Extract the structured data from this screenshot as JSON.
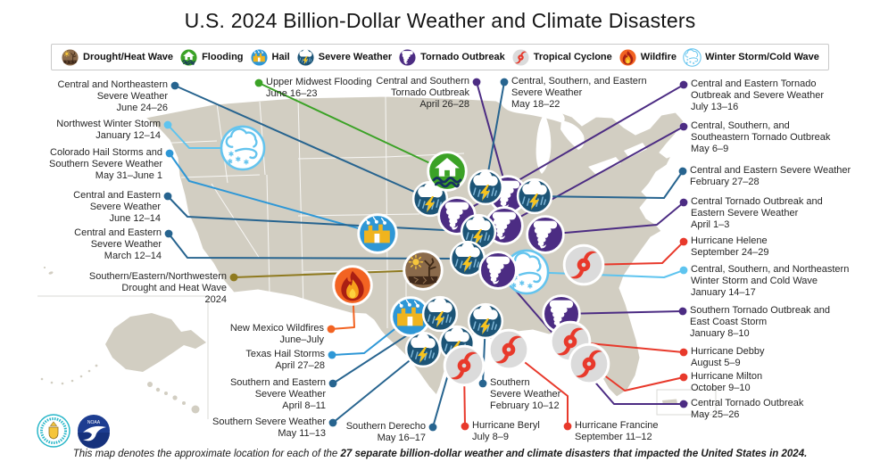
{
  "title": "U.S. 2024 Billion-Dollar Weather and Climate Disasters",
  "footer": {
    "normal": "This map denotes the approximate location for each of the ",
    "bold": "27 separate billion-dollar weather and climate disasters that impacted the United States in 2024."
  },
  "logos": {
    "noaa_text": "NOAA"
  },
  "type_colors": {
    "severe-weather": "#27648f",
    "tornado": "#4c2c83",
    "tropical-cyclone": "#e8392b",
    "winter-storm": "#5ec4ef",
    "hail": "#2e97d6",
    "flooding": "#3ba226",
    "wildfire": "#f26322",
    "drought": "#8f7a1f"
  },
  "type_icon_scale": {
    "severe-weather": 1.02,
    "tornado": 1.1,
    "tropical-cyclone": 1.18,
    "winter-storm": 1.3,
    "hail": 1.15,
    "flooding": 1.15,
    "wildfire": 1.15,
    "drought": 1.15
  },
  "legend": [
    {
      "type": "drought",
      "label": "Drought/Heat Wave"
    },
    {
      "type": "flooding",
      "label": "Flooding"
    },
    {
      "type": "hail",
      "label": "Hail"
    },
    {
      "type": "severe-weather",
      "label": "Severe Weather"
    },
    {
      "type": "tornado",
      "label": "Tornado Outbreak"
    },
    {
      "type": "tropical-cyclone",
      "label": "Tropical Cyclone"
    },
    {
      "type": "wildfire",
      "label": "Wildfire"
    },
    {
      "type": "winter-storm",
      "label": "Winter Storm/Cold Wave"
    }
  ],
  "disasters": [
    {
      "type": "severe-weather",
      "label": [
        "Central and Northeastern",
        "Severe Weather",
        "June 24–26"
      ],
      "dot": [
        196,
        96
      ],
      "icon": [
        482,
        223
      ],
      "elbows": [],
      "align": "right"
    },
    {
      "type": "flooding",
      "label": [
        "Upper Midwest Flooding",
        "June 16–23"
      ],
      "dot": [
        290,
        93
      ],
      "icon": [
        501,
        192
      ],
      "elbows": [],
      "align": "left"
    },
    {
      "type": "tornado",
      "label": [
        "Central and Southern",
        "Tornado Outbreak",
        "April 26–28"
      ],
      "dot": [
        534,
        92
      ],
      "icon": [
        569,
        218
      ],
      "elbows": [],
      "align": "right"
    },
    {
      "type": "severe-weather",
      "label": [
        "Central, Southern, and Eastern",
        "Severe Weather",
        "May 18–22"
      ],
      "dot": [
        565,
        92
      ],
      "icon": [
        544,
        210
      ],
      "elbows": [],
      "align": "left"
    },
    {
      "type": "tornado",
      "label": [
        "Central and Eastern Tornado",
        "Outbreak and Severe Weather",
        "July 13–16"
      ],
      "dot": [
        766,
        95
      ],
      "icon": [
        512,
        242
      ],
      "elbows": [],
      "align": "left"
    },
    {
      "type": "winter-storm",
      "label": [
        "Northwest Winter Storm",
        "January 12–14"
      ],
      "dot": [
        188,
        140
      ],
      "icon": [
        272,
        166
      ],
      "elbows": [
        [
          212,
          166
        ]
      ],
      "align": "right"
    },
    {
      "type": "hail",
      "label": [
        "Colorado Hail Storms and",
        "Southern Severe Weather",
        "May 31–June 1"
      ],
      "dot": [
        190,
        172
      ],
      "icon": [
        423,
        262
      ],
      "elbows": [
        [
          212,
          203
        ]
      ],
      "align": "right"
    },
    {
      "type": "tornado",
      "label": [
        "Central, Southern, and",
        "Southeastern Tornado Outbreak",
        "May 6–9"
      ],
      "dot": [
        766,
        142
      ],
      "icon": [
        565,
        253
      ],
      "elbows": [],
      "align": "left"
    },
    {
      "type": "severe-weather",
      "label": [
        "Central and Eastern",
        "Severe Weather",
        "June 12–14"
      ],
      "dot": [
        188,
        220
      ],
      "icon": [
        536,
        260
      ],
      "elbows": [
        [
          210,
          243
        ]
      ],
      "align": "right"
    },
    {
      "type": "severe-weather",
      "label": [
        "Central and Eastern Severe Weather",
        "February 27–28"
      ],
      "dot": [
        765,
        192
      ],
      "icon": [
        599,
        220
      ],
      "elbows": [
        [
          744,
          222
        ]
      ],
      "align": "left"
    },
    {
      "type": "severe-weather",
      "label": [
        "Central and Eastern",
        "Severe Weather",
        "March 12–14"
      ],
      "dot": [
        189,
        262
      ],
      "icon": [
        524,
        290
      ],
      "elbows": [
        [
          210,
          289
        ]
      ],
      "align": "right"
    },
    {
      "type": "tornado",
      "label": [
        "Central Tornado Outbreak and",
        "Eastern Severe Weather",
        "April 1–3"
      ],
      "dot": [
        766,
        227
      ],
      "icon": [
        611,
        263
      ],
      "elbows": [
        [
          736,
          252
        ]
      ],
      "align": "left"
    },
    {
      "type": "drought",
      "label": [
        "Southern/Eastern/Northwestern",
        "Drought and Heat Wave",
        "2024"
      ],
      "dot": [
        262,
        311
      ],
      "icon": [
        474,
        303
      ],
      "elbows": [],
      "align": "right"
    },
    {
      "type": "tropical-cyclone",
      "label": [
        "Hurricane Helene",
        "September 24–29"
      ],
      "dot": [
        766,
        271
      ],
      "icon": [
        654,
        297
      ],
      "elbows": [
        [
          742,
          295
        ]
      ],
      "align": "left"
    },
    {
      "type": "winter-storm",
      "label": [
        "Central, Southern, and Northeastern",
        "Winter Storm and Cold Wave",
        "January 14–17"
      ],
      "dot": [
        766,
        303
      ],
      "icon": [
        590,
        305
      ],
      "elbows": [
        [
          744,
          311
        ]
      ],
      "align": "left"
    },
    {
      "type": "wildfire",
      "label": [
        "New Mexico Wildfires",
        "June–July"
      ],
      "dot": [
        371,
        369
      ],
      "icon": [
        395,
        320
      ],
      "elbows": [
        [
          397,
          367
        ]
      ],
      "align": "right"
    },
    {
      "type": "tornado",
      "label": [
        "Southern Tornado Outbreak and",
        "East Coast Storm",
        "January 8–10"
      ],
      "dot": [
        765,
        349
      ],
      "icon": [
        629,
        352
      ],
      "elbows": [],
      "align": "left"
    },
    {
      "type": "hail",
      "label": [
        "Texas Hail Storms",
        "April 27–28"
      ],
      "dot": [
        372,
        398
      ],
      "icon": [
        460,
        355
      ],
      "elbows": [
        [
          408,
          396
        ]
      ],
      "align": "right"
    },
    {
      "type": "severe-weather",
      "label": [
        "Southern and Eastern",
        "Severe Weather",
        "April 8–11"
      ],
      "dot": [
        373,
        430
      ],
      "icon": [
        493,
        352
      ],
      "elbows": [],
      "align": "right"
    },
    {
      "type": "tropical-cyclone",
      "label": [
        "Hurricane Debby",
        "August 5–9"
      ],
      "dot": [
        766,
        395
      ],
      "icon": [
        639,
        383
      ],
      "elbows": [],
      "align": "left"
    },
    {
      "type": "tropical-cyclone",
      "label": [
        "Hurricane Milton",
        "October 9–10"
      ],
      "dot": [
        766,
        423
      ],
      "icon": [
        660,
        408
      ],
      "elbows": [
        [
          700,
          438
        ]
      ],
      "align": "left"
    },
    {
      "type": "severe-weather",
      "label": [
        "Southern Severe Weather",
        "May 11–13"
      ],
      "dot": [
        373,
        474
      ],
      "icon": [
        474,
        392
      ],
      "elbows": [],
      "align": "right"
    },
    {
      "type": "severe-weather",
      "label": [
        "Southern Derecho",
        "May 16–17"
      ],
      "dot": [
        485,
        479
      ],
      "icon": [
        512,
        385
      ],
      "elbows": [],
      "align": "right"
    },
    {
      "type": "severe-weather",
      "label": [
        "Southern",
        "Severe Weather",
        "February 10–12"
      ],
      "dot": [
        541,
        430
      ],
      "icon": [
        544,
        360
      ],
      "elbows": [],
      "align": "left"
    },
    {
      "type": "tropical-cyclone",
      "label": [
        "Hurricane Beryl",
        "July 8–9"
      ],
      "dot": [
        521,
        478
      ],
      "icon": [
        520,
        410
      ],
      "elbows": [],
      "align": "left"
    },
    {
      "type": "tropical-cyclone",
      "label": [
        "Hurricane Francine",
        "September 11–12"
      ],
      "dot": [
        636,
        478
      ],
      "icon": [
        570,
        392
      ],
      "elbows": [
        [
          636,
          444
        ]
      ],
      "align": "left"
    },
    {
      "type": "tornado",
      "label": [
        "Central Tornado Outbreak",
        "May 25–26"
      ],
      "dot": [
        766,
        453
      ],
      "icon": [
        558,
        303
      ],
      "elbows": [
        [
          688,
          453
        ]
      ],
      "align": "left"
    }
  ]
}
